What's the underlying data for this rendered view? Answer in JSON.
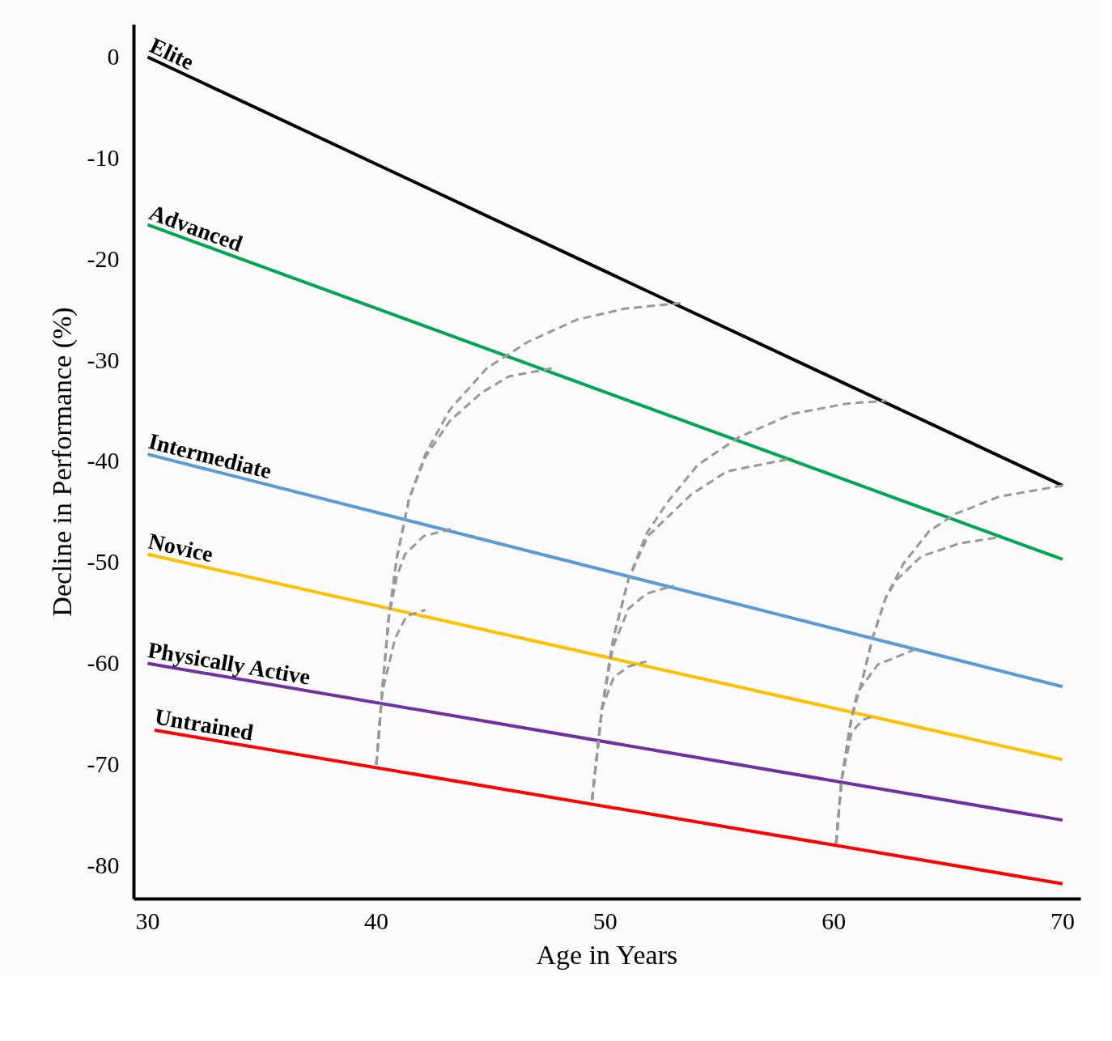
{
  "chart_data": {
    "type": "line",
    "xlabel": "Age in Years",
    "ylabel": "Decline in Performance (%)",
    "xlim": [
      29.4,
      70.8
    ],
    "ylim": [
      -83.3,
      3.2
    ],
    "xticks": [
      30,
      40,
      50,
      60,
      70
    ],
    "yticks": [
      0,
      -10,
      -20,
      -30,
      -40,
      -50,
      -60,
      -70,
      -80
    ],
    "grid": false,
    "legend": false,
    "line_style": "solid",
    "series": [
      {
        "name": "Elite",
        "color": "#000000",
        "x": [
          30,
          70
        ],
        "values": [
          0,
          -42.4
        ]
      },
      {
        "name": "Advanced",
        "color": "#00a651",
        "x": [
          30,
          70
        ],
        "values": [
          -16.6,
          -49.7
        ]
      },
      {
        "name": "Intermediate",
        "color": "#5b9bd5",
        "x": [
          30,
          70
        ],
        "values": [
          -39.3,
          -62.3
        ]
      },
      {
        "name": "Novice",
        "color": "#ffc000",
        "x": [
          30,
          70
        ],
        "values": [
          -49.2,
          -69.5
        ]
      },
      {
        "name": "Physically Active",
        "color": "#7030a0",
        "x": [
          30,
          70
        ],
        "values": [
          -60.0,
          -75.5
        ]
      },
      {
        "name": "Untrained",
        "color": "#ff0000",
        "x": [
          30.3,
          70
        ],
        "values": [
          -66.6,
          -81.8
        ]
      },
      {
        "color": "#999999",
        "line_style": "dashed",
        "x": [
          40,
          40.25,
          40.54,
          40.89,
          41.43,
          42.14,
          43.21,
          44.82,
          46.61,
          48.75,
          50.85,
          53.49
        ],
        "values": [
          -70.0,
          -62.9,
          -55.5,
          -49.6,
          -43.7,
          -39.3,
          -34.9,
          -30.8,
          -28.2,
          -26.0,
          -24.9,
          -24.3
        ]
      },
      {
        "color": "#999999",
        "line_style": "dashed",
        "x": [
          40,
          40.25,
          40.54,
          40.89,
          41.43,
          42.14,
          43.21,
          44.61,
          45.79,
          47.68
        ],
        "values": [
          -70.0,
          -62.9,
          -55.5,
          -49.6,
          -43.7,
          -39.6,
          -36.0,
          -33.2,
          -31.6,
          -30.8
        ]
      },
      {
        "color": "#999999",
        "line_style": "dashed",
        "x": [
          40,
          40.25,
          40.54,
          40.89,
          41.25,
          42.07,
          43.43
        ],
        "values": [
          -70.0,
          -62.9,
          -55.5,
          -51.4,
          -49.2,
          -47.4,
          -46.6
        ]
      },
      {
        "color": "#999999",
        "line_style": "dashed",
        "x": [
          40,
          40.25,
          40.82,
          41.32,
          42.14
        ],
        "values": [
          -70.0,
          -62.9,
          -57.5,
          -55.3,
          -54.7
        ]
      },
      {
        "color": "#999999",
        "line_style": "dashed",
        "x": [
          49.43,
          49.86,
          50.37,
          51.02,
          51.8,
          52.71,
          54.03,
          55.86,
          58.2,
          60.54,
          62.3
        ],
        "values": [
          -73.5,
          -64.5,
          -57.4,
          -51.7,
          -47.2,
          -44.1,
          -40.4,
          -37.6,
          -35.3,
          -34.3,
          -34.0
        ]
      },
      {
        "color": "#999999",
        "line_style": "dashed",
        "x": [
          49.43,
          49.86,
          50.37,
          51.02,
          51.87,
          53.76,
          55.32,
          58.2
        ],
        "values": [
          -73.5,
          -64.5,
          -57.4,
          -51.7,
          -47.4,
          -43.3,
          -41.0,
          -39.7
        ]
      },
      {
        "color": "#999999",
        "line_style": "dashed",
        "x": [
          49.43,
          49.86,
          50.34,
          51.02,
          51.8,
          53.01
        ],
        "values": [
          -73.5,
          -64.5,
          -58.4,
          -54.6,
          -53.1,
          -52.3
        ]
      },
      {
        "color": "#999999",
        "line_style": "dashed",
        "x": [
          49.43,
          49.86,
          50.37,
          51.02,
          51.8
        ],
        "values": [
          -73.5,
          -64.5,
          -61.4,
          -60.3,
          -59.8
        ]
      },
      {
        "color": "#999999",
        "line_style": "dashed",
        "x": [
          60.1,
          60.34,
          60.78,
          61.25,
          61.69,
          62.27,
          63.05,
          64.17,
          65.32,
          67.22,
          70
        ],
        "values": [
          -77.8,
          -71.5,
          -65.3,
          -61.6,
          -57.5,
          -53.5,
          -50.1,
          -46.9,
          -45.2,
          -43.5,
          -42.4
        ]
      },
      {
        "color": "#999999",
        "line_style": "dashed",
        "x": [
          60.1,
          60.34,
          60.78,
          61.25,
          61.69,
          62.27,
          62.71,
          63.83,
          65.53,
          67.29
        ],
        "values": [
          -77.8,
          -71.5,
          -65.3,
          -61.6,
          -57.5,
          -53.5,
          -51.8,
          -49.4,
          -48.1,
          -47.5
        ]
      },
      {
        "color": "#999999",
        "line_style": "dashed",
        "x": [
          60.1,
          60.34,
          60.68,
          61.02,
          61.93,
          63.56
        ],
        "values": [
          -77.8,
          -71.5,
          -66.5,
          -62.9,
          -60.1,
          -58.6
        ]
      },
      {
        "color": "#999999",
        "line_style": "dashed",
        "x": [
          60.1,
          60.34,
          60.78,
          61.25,
          61.76
        ],
        "values": [
          -77.8,
          -71.5,
          -66.8,
          -65.6,
          -65.2
        ]
      }
    ]
  }
}
